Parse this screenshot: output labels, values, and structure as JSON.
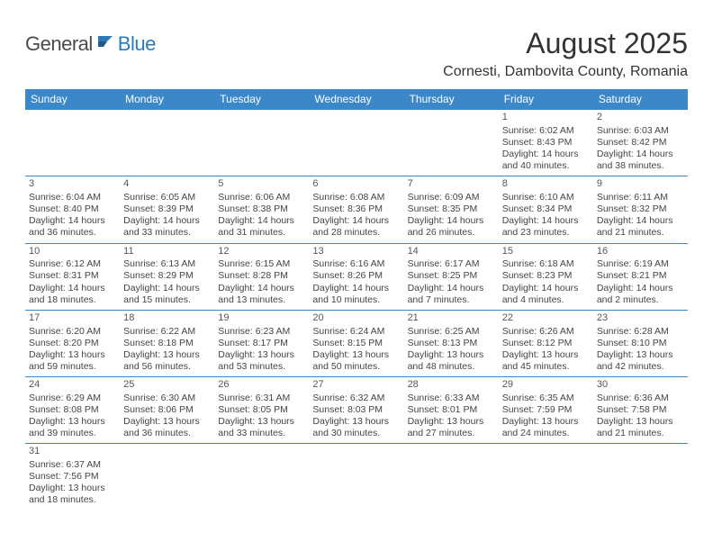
{
  "logo": {
    "general": "General",
    "blue": "Blue"
  },
  "title": "August 2025",
  "location": "Cornesti, Dambovita County, Romania",
  "colors": {
    "header_bg": "#3b87c8",
    "header_text": "#ffffff",
    "border": "#3b87c8",
    "logo_gray": "#4a4a4a",
    "logo_blue": "#2a7ab8",
    "body_text": "#444444",
    "background": "#ffffff"
  },
  "weekdays": [
    "Sunday",
    "Monday",
    "Tuesday",
    "Wednesday",
    "Thursday",
    "Friday",
    "Saturday"
  ],
  "weeks": [
    [
      null,
      null,
      null,
      null,
      null,
      {
        "d": "1",
        "sr": "Sunrise: 6:02 AM",
        "ss": "Sunset: 8:43 PM",
        "dl1": "Daylight: 14 hours",
        "dl2": "and 40 minutes."
      },
      {
        "d": "2",
        "sr": "Sunrise: 6:03 AM",
        "ss": "Sunset: 8:42 PM",
        "dl1": "Daylight: 14 hours",
        "dl2": "and 38 minutes."
      }
    ],
    [
      {
        "d": "3",
        "sr": "Sunrise: 6:04 AM",
        "ss": "Sunset: 8:40 PM",
        "dl1": "Daylight: 14 hours",
        "dl2": "and 36 minutes."
      },
      {
        "d": "4",
        "sr": "Sunrise: 6:05 AM",
        "ss": "Sunset: 8:39 PM",
        "dl1": "Daylight: 14 hours",
        "dl2": "and 33 minutes."
      },
      {
        "d": "5",
        "sr": "Sunrise: 6:06 AM",
        "ss": "Sunset: 8:38 PM",
        "dl1": "Daylight: 14 hours",
        "dl2": "and 31 minutes."
      },
      {
        "d": "6",
        "sr": "Sunrise: 6:08 AM",
        "ss": "Sunset: 8:36 PM",
        "dl1": "Daylight: 14 hours",
        "dl2": "and 28 minutes."
      },
      {
        "d": "7",
        "sr": "Sunrise: 6:09 AM",
        "ss": "Sunset: 8:35 PM",
        "dl1": "Daylight: 14 hours",
        "dl2": "and 26 minutes."
      },
      {
        "d": "8",
        "sr": "Sunrise: 6:10 AM",
        "ss": "Sunset: 8:34 PM",
        "dl1": "Daylight: 14 hours",
        "dl2": "and 23 minutes."
      },
      {
        "d": "9",
        "sr": "Sunrise: 6:11 AM",
        "ss": "Sunset: 8:32 PM",
        "dl1": "Daylight: 14 hours",
        "dl2": "and 21 minutes."
      }
    ],
    [
      {
        "d": "10",
        "sr": "Sunrise: 6:12 AM",
        "ss": "Sunset: 8:31 PM",
        "dl1": "Daylight: 14 hours",
        "dl2": "and 18 minutes."
      },
      {
        "d": "11",
        "sr": "Sunrise: 6:13 AM",
        "ss": "Sunset: 8:29 PM",
        "dl1": "Daylight: 14 hours",
        "dl2": "and 15 minutes."
      },
      {
        "d": "12",
        "sr": "Sunrise: 6:15 AM",
        "ss": "Sunset: 8:28 PM",
        "dl1": "Daylight: 14 hours",
        "dl2": "and 13 minutes."
      },
      {
        "d": "13",
        "sr": "Sunrise: 6:16 AM",
        "ss": "Sunset: 8:26 PM",
        "dl1": "Daylight: 14 hours",
        "dl2": "and 10 minutes."
      },
      {
        "d": "14",
        "sr": "Sunrise: 6:17 AM",
        "ss": "Sunset: 8:25 PM",
        "dl1": "Daylight: 14 hours",
        "dl2": "and 7 minutes."
      },
      {
        "d": "15",
        "sr": "Sunrise: 6:18 AM",
        "ss": "Sunset: 8:23 PM",
        "dl1": "Daylight: 14 hours",
        "dl2": "and 4 minutes."
      },
      {
        "d": "16",
        "sr": "Sunrise: 6:19 AM",
        "ss": "Sunset: 8:21 PM",
        "dl1": "Daylight: 14 hours",
        "dl2": "and 2 minutes."
      }
    ],
    [
      {
        "d": "17",
        "sr": "Sunrise: 6:20 AM",
        "ss": "Sunset: 8:20 PM",
        "dl1": "Daylight: 13 hours",
        "dl2": "and 59 minutes."
      },
      {
        "d": "18",
        "sr": "Sunrise: 6:22 AM",
        "ss": "Sunset: 8:18 PM",
        "dl1": "Daylight: 13 hours",
        "dl2": "and 56 minutes."
      },
      {
        "d": "19",
        "sr": "Sunrise: 6:23 AM",
        "ss": "Sunset: 8:17 PM",
        "dl1": "Daylight: 13 hours",
        "dl2": "and 53 minutes."
      },
      {
        "d": "20",
        "sr": "Sunrise: 6:24 AM",
        "ss": "Sunset: 8:15 PM",
        "dl1": "Daylight: 13 hours",
        "dl2": "and 50 minutes."
      },
      {
        "d": "21",
        "sr": "Sunrise: 6:25 AM",
        "ss": "Sunset: 8:13 PM",
        "dl1": "Daylight: 13 hours",
        "dl2": "and 48 minutes."
      },
      {
        "d": "22",
        "sr": "Sunrise: 6:26 AM",
        "ss": "Sunset: 8:12 PM",
        "dl1": "Daylight: 13 hours",
        "dl2": "and 45 minutes."
      },
      {
        "d": "23",
        "sr": "Sunrise: 6:28 AM",
        "ss": "Sunset: 8:10 PM",
        "dl1": "Daylight: 13 hours",
        "dl2": "and 42 minutes."
      }
    ],
    [
      {
        "d": "24",
        "sr": "Sunrise: 6:29 AM",
        "ss": "Sunset: 8:08 PM",
        "dl1": "Daylight: 13 hours",
        "dl2": "and 39 minutes."
      },
      {
        "d": "25",
        "sr": "Sunrise: 6:30 AM",
        "ss": "Sunset: 8:06 PM",
        "dl1": "Daylight: 13 hours",
        "dl2": "and 36 minutes."
      },
      {
        "d": "26",
        "sr": "Sunrise: 6:31 AM",
        "ss": "Sunset: 8:05 PM",
        "dl1": "Daylight: 13 hours",
        "dl2": "and 33 minutes."
      },
      {
        "d": "27",
        "sr": "Sunrise: 6:32 AM",
        "ss": "Sunset: 8:03 PM",
        "dl1": "Daylight: 13 hours",
        "dl2": "and 30 minutes."
      },
      {
        "d": "28",
        "sr": "Sunrise: 6:33 AM",
        "ss": "Sunset: 8:01 PM",
        "dl1": "Daylight: 13 hours",
        "dl2": "and 27 minutes."
      },
      {
        "d": "29",
        "sr": "Sunrise: 6:35 AM",
        "ss": "Sunset: 7:59 PM",
        "dl1": "Daylight: 13 hours",
        "dl2": "and 24 minutes."
      },
      {
        "d": "30",
        "sr": "Sunrise: 6:36 AM",
        "ss": "Sunset: 7:58 PM",
        "dl1": "Daylight: 13 hours",
        "dl2": "and 21 minutes."
      }
    ],
    [
      {
        "d": "31",
        "sr": "Sunrise: 6:37 AM",
        "ss": "Sunset: 7:56 PM",
        "dl1": "Daylight: 13 hours",
        "dl2": "and 18 minutes."
      },
      null,
      null,
      null,
      null,
      null,
      null
    ]
  ]
}
